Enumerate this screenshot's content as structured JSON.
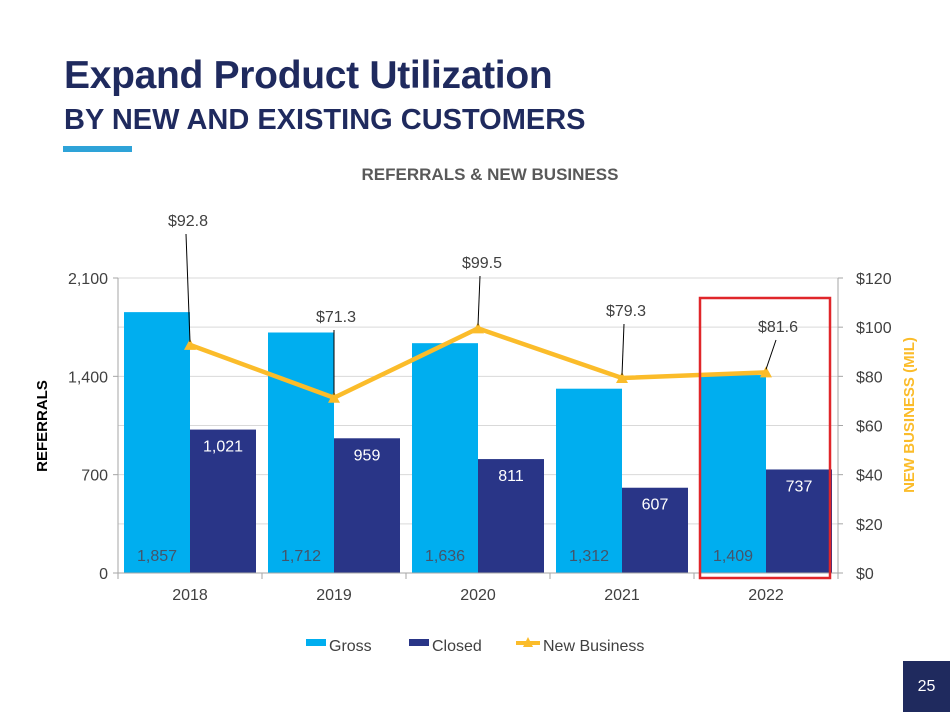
{
  "slide": {
    "title": "Expand Product Utilization",
    "subtitle": "BY NEW AND EXISTING CUSTOMERS",
    "page_number": "25"
  },
  "colors": {
    "title": "#1f2a5e",
    "accent": "#2ea3d8",
    "gross": "#00aeef",
    "closed": "#293587",
    "new_business": "#fbbc2a",
    "highlight_box": "#e0262a"
  },
  "chart_data": {
    "type": "bar",
    "title": "REFERRALS & NEW BUSINESS",
    "categories": [
      "2018",
      "2019",
      "2020",
      "2021",
      "2022"
    ],
    "series": [
      {
        "name": "Gross",
        "type": "bar",
        "axis": "left",
        "values": [
          1857,
          1712,
          1636,
          1312,
          1409
        ],
        "labels": [
          "1,857",
          "1,712",
          "1,636",
          "1,312",
          "1,409"
        ]
      },
      {
        "name": "Closed",
        "type": "bar",
        "axis": "left",
        "values": [
          1021,
          959,
          811,
          607,
          737
        ],
        "labels": [
          "1,021",
          "959",
          "811",
          "607",
          "737"
        ]
      },
      {
        "name": "New Business",
        "type": "line",
        "axis": "right",
        "values": [
          92.8,
          71.3,
          99.5,
          79.3,
          81.6
        ],
        "labels": [
          "$92.8",
          "$71.3",
          "$99.5",
          "$79.3",
          "$81.6"
        ]
      }
    ],
    "ylabel": "REFERRALS",
    "ylim": [
      0,
      2100
    ],
    "yticks": [
      0,
      700,
      1400,
      2100
    ],
    "ytick_labels": [
      "0",
      "700",
      "1,400",
      "2,100"
    ],
    "y2label": "NEW BUSINESS (MIL)",
    "y2lim": [
      0,
      120
    ],
    "y2ticks": [
      0,
      20,
      40,
      60,
      80,
      100,
      120
    ],
    "y2tick_labels": [
      "$0",
      "$20",
      "$40",
      "$60",
      "$80",
      "$100",
      "$120"
    ],
    "grid": true,
    "legend": {
      "position": "bottom",
      "entries": [
        "Gross",
        "Closed",
        "New Business"
      ]
    },
    "highlight_category": "2022"
  }
}
